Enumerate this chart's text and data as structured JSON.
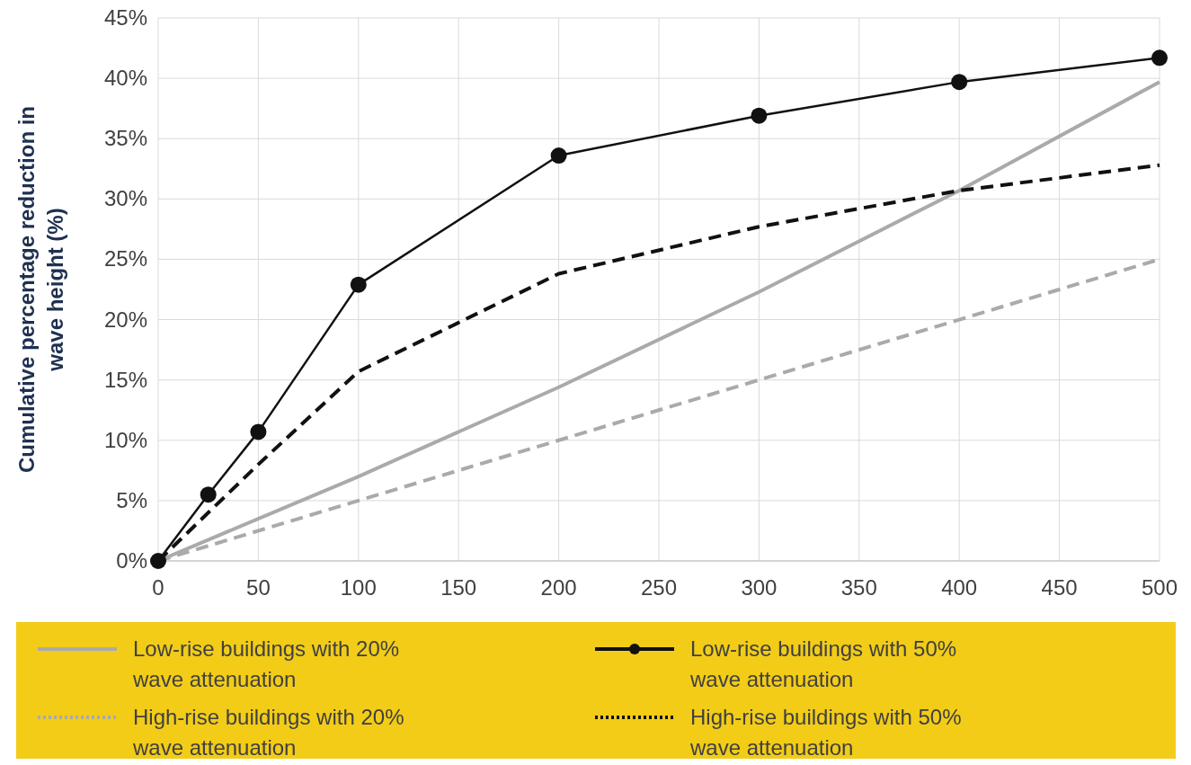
{
  "chart_data": {
    "type": "line",
    "ylabel": "Cumulative percentage reduction in wave height (%)",
    "xlim": [
      0,
      500
    ],
    "xticks": [
      0,
      50,
      100,
      150,
      200,
      250,
      300,
      350,
      400,
      450,
      500
    ],
    "ylim": [
      0,
      45
    ],
    "yticks": [
      {
        "value": 0,
        "label": "0%"
      },
      {
        "value": 5,
        "label": "5%"
      },
      {
        "value": 10,
        "label": "10%"
      },
      {
        "value": 15,
        "label": "15%"
      },
      {
        "value": 20,
        "label": "20%"
      },
      {
        "value": 25,
        "label": "25%"
      },
      {
        "value": 30,
        "label": "30%"
      },
      {
        "value": 35,
        "label": "35%"
      },
      {
        "value": 40,
        "label": "40%"
      },
      {
        "value": 45,
        "label": "45%"
      }
    ],
    "grid": true,
    "legend": "bottom",
    "series": [
      {
        "name": "Low-rise buildings with 20% wave attenuation",
        "color": "#aaaaaa",
        "line_style": "solid",
        "marker": "none",
        "x": [
          0,
          100,
          200,
          300,
          400,
          500
        ],
        "values": [
          0,
          7.0,
          14.4,
          22.3,
          30.7,
          39.7
        ]
      },
      {
        "name": "High-rise buildings with 20% wave attenuation",
        "color": "#aaaaaa",
        "line_style": "dashed",
        "marker": "none",
        "x": [
          0,
          100,
          200,
          300,
          400,
          500
        ],
        "values": [
          0,
          5,
          10,
          15,
          20,
          25
        ]
      },
      {
        "name": "Low-rise buildings with 50% wave attenuation",
        "color": "#111111",
        "line_style": "solid",
        "marker": "circle",
        "x": [
          0,
          25,
          50,
          100,
          200,
          300,
          400,
          500
        ],
        "values": [
          0,
          5.5,
          10.7,
          22.9,
          33.6,
          36.9,
          39.7,
          41.7
        ]
      },
      {
        "name": "High-rise buildings with 50% wave attenuation",
        "color": "#111111",
        "line_style": "dashed",
        "marker": "none",
        "x": [
          0,
          25,
          50,
          100,
          200,
          300,
          400,
          500
        ],
        "values": [
          0,
          4.0,
          8.0,
          15.7,
          23.8,
          27.7,
          30.7,
          32.8
        ]
      }
    ]
  }
}
